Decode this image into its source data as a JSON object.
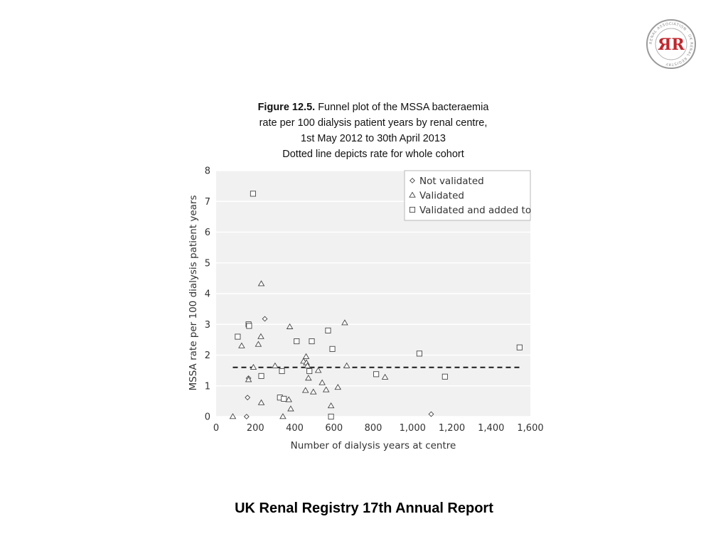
{
  "logo": {
    "letters": "ЯR",
    "ring_text": "RENAL ASSOCIATION · UK RENAL REGISTRY",
    "color": "#c0272d",
    "icon": "renal-registry-logo-icon"
  },
  "caption": {
    "figure_label": "Figure 12.5.",
    "line1": " Funnel plot of the MSSA bacteraemia",
    "line2": "rate per 100 dialysis patient years by renal centre,",
    "line3": "1st May 2012 to 30th April 2013",
    "line4": "Dotted line depicts rate for whole cohort"
  },
  "footer": {
    "text": "UK Renal Registry 17th Annual Report"
  },
  "chart_data": {
    "type": "scatter",
    "xlabel": "Number of dialysis years at centre",
    "ylabel": "MSSA rate per 100 dialysis patient years",
    "xlim": [
      0,
      1600
    ],
    "ylim": [
      0,
      8
    ],
    "xticks": [
      0,
      200,
      400,
      600,
      800,
      1000,
      1200,
      1400,
      1600
    ],
    "xtick_labels": [
      "0",
      "200",
      "400",
      "600",
      "800",
      "1,000",
      "1,200",
      "1,400",
      "1,600"
    ],
    "yticks": [
      0,
      1,
      2,
      3,
      4,
      5,
      6,
      7,
      8
    ],
    "ytick_labels": [
      "0",
      "1",
      "2",
      "3",
      "4",
      "5",
      "6",
      "7",
      "8"
    ],
    "grid": true,
    "background": "#f1f1f1",
    "legend_position": "top-right",
    "reference_line": {
      "y": 1.6,
      "style": "dashed",
      "x_range": [
        85,
        1550
      ]
    },
    "series": [
      {
        "name": "Not validated",
        "marker": "diamond",
        "points": [
          [
            155,
            0
          ],
          [
            160,
            0.62
          ],
          [
            165,
            1.25
          ],
          [
            248,
            3.18
          ],
          [
            1095,
            0.08
          ]
        ]
      },
      {
        "name": "Validated",
        "marker": "triangle",
        "points": [
          [
            85,
            0
          ],
          [
            130,
            2.3
          ],
          [
            165,
            1.2
          ],
          [
            190,
            1.6
          ],
          [
            215,
            2.35
          ],
          [
            228,
            2.6
          ],
          [
            230,
            4.32
          ],
          [
            230,
            0.45
          ],
          [
            300,
            1.65
          ],
          [
            340,
            0
          ],
          [
            370,
            0.55
          ],
          [
            375,
            2.92
          ],
          [
            380,
            0.25
          ],
          [
            445,
            1.8
          ],
          [
            455,
            0.85
          ],
          [
            458,
            1.95
          ],
          [
            460,
            1.75
          ],
          [
            465,
            1.65
          ],
          [
            470,
            1.25
          ],
          [
            495,
            0.8
          ],
          [
            520,
            1.5
          ],
          [
            540,
            1.1
          ],
          [
            560,
            0.87
          ],
          [
            585,
            0.35
          ],
          [
            620,
            0.95
          ],
          [
            655,
            3.05
          ],
          [
            665,
            1.65
          ],
          [
            860,
            1.28
          ]
        ]
      },
      {
        "name": "Validated and added to",
        "marker": "square",
        "points": [
          [
            110,
            2.6
          ],
          [
            165,
            3.0
          ],
          [
            168,
            2.95
          ],
          [
            188,
            7.25
          ],
          [
            230,
            1.32
          ],
          [
            325,
            0.62
          ],
          [
            335,
            1.48
          ],
          [
            345,
            0.58
          ],
          [
            410,
            2.45
          ],
          [
            475,
            1.48
          ],
          [
            487,
            2.45
          ],
          [
            570,
            2.8
          ],
          [
            585,
            0
          ],
          [
            592,
            2.2
          ],
          [
            815,
            1.38
          ],
          [
            1035,
            2.05
          ],
          [
            1165,
            1.3
          ],
          [
            1545,
            2.25
          ]
        ]
      }
    ]
  }
}
